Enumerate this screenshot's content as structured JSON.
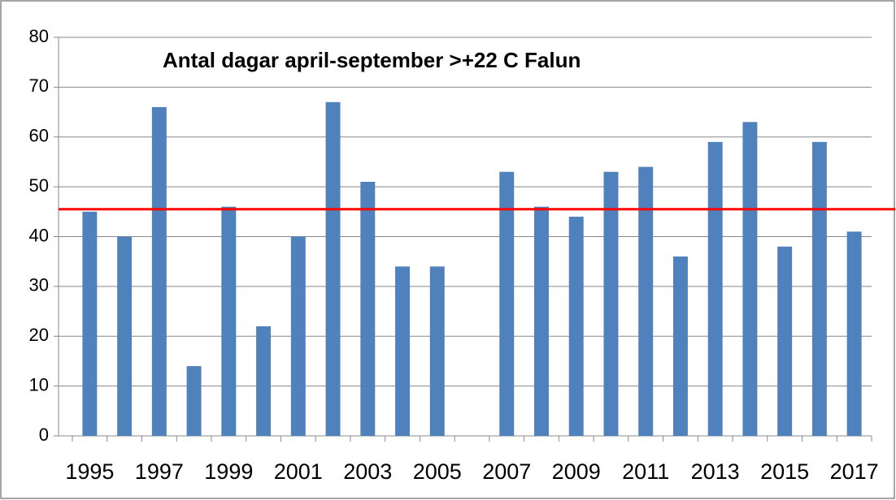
{
  "chart_data": {
    "type": "bar",
    "title": "Antal dagar april-september >+22 C Falun",
    "categories": [
      "1995",
      null,
      "1997",
      null,
      "1999",
      null,
      "2001",
      null,
      "2003",
      null,
      "2005",
      null,
      "2007",
      null,
      "2009",
      null,
      "2011",
      null,
      "2013",
      null,
      "2015",
      null,
      "2017"
    ],
    "values": [
      45,
      40,
      66,
      14,
      46,
      22,
      40,
      67,
      51,
      34,
      34,
      null,
      53,
      46,
      44,
      53,
      54,
      36,
      59,
      63,
      38,
      59,
      41
    ],
    "color": "#4f81bd",
    "reference_line": {
      "value": 45.5,
      "color": "#ff0000"
    },
    "ylim": [
      0,
      80
    ],
    "yticks": [
      0,
      10,
      20,
      30,
      40,
      50,
      60,
      70,
      80
    ],
    "grid": true
  }
}
